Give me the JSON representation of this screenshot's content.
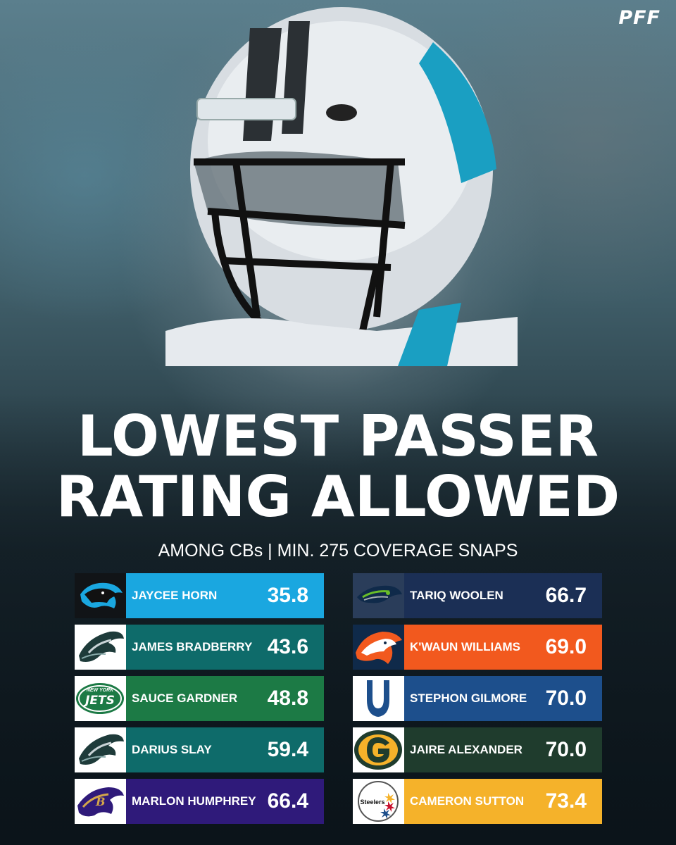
{
  "brand": "PFF",
  "title_line1": "LOWEST PASSER",
  "title_line2": "RATING ALLOWED",
  "subtitle": "AMONG CBs | MIN. 275 COVERAGE SNAPS",
  "left": [
    {
      "name": "JAYCEE HORN",
      "value": "35.8",
      "team": "panthers",
      "bar": "#1aa7e0",
      "logo_bg": "#111417"
    },
    {
      "name": "JAMES BRADBERRY",
      "value": "43.6",
      "team": "eagles",
      "bar": "#0e6b6a",
      "logo_bg": "#ffffff"
    },
    {
      "name": "SAUCE GARDNER",
      "value": "48.8",
      "team": "jets",
      "bar": "#1c7a45",
      "logo_bg": "#ffffff"
    },
    {
      "name": "DARIUS SLAY",
      "value": "59.4",
      "team": "eagles",
      "bar": "#0e6b6a",
      "logo_bg": "#ffffff"
    },
    {
      "name": "MARLON HUMPHREY",
      "value": "66.4",
      "team": "ravens",
      "bar": "#2f1a7a",
      "logo_bg": "#ffffff"
    }
  ],
  "right": [
    {
      "name": "TARIQ WOOLEN",
      "value": "66.7",
      "team": "seahawks",
      "bar": "#1b2f55",
      "logo_bg": "#2a3d5a"
    },
    {
      "name": "K'WAUN WILLIAMS",
      "value": "69.0",
      "team": "broncos",
      "bar": "#f2591e",
      "logo_bg": "#0f2a4a"
    },
    {
      "name": "STEPHON GILMORE",
      "value": "70.0",
      "team": "colts",
      "bar": "#1d4f8c",
      "logo_bg": "#ffffff"
    },
    {
      "name": "JAIRE ALEXANDER",
      "value": "70.0",
      "team": "packers",
      "bar": "#1f3c2d",
      "logo_bg": "#ffffff"
    },
    {
      "name": "CAMERON SUTTON",
      "value": "73.4",
      "team": "steelers",
      "bar": "#f5b22a",
      "logo_bg": "#ffffff"
    }
  ],
  "jets_logo_text": "NEW YORK",
  "jets_logo_word": "JETS",
  "steelers_logo_text": "Steelers"
}
